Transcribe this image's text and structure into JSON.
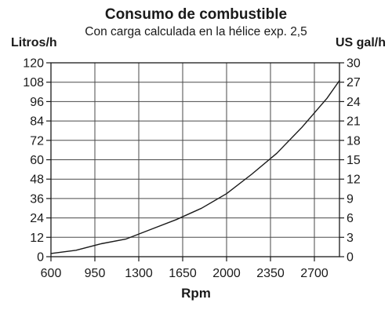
{
  "chart_data": {
    "type": "line",
    "title": "Consumo de combustible",
    "subtitle": "Con carga calculada en la hélice exp. 2,5",
    "xlabel": "Rpm",
    "ylabel_left": "Litros/h",
    "ylabel_right": "US gal/h",
    "xlim": [
      600,
      2900
    ],
    "ylim": [
      0,
      120
    ],
    "ylim_right": [
      0,
      30
    ],
    "x_ticks": [
      600,
      950,
      1300,
      1650,
      2000,
      2350,
      2700
    ],
    "y_ticks": [
      0,
      12,
      24,
      36,
      48,
      60,
      72,
      84,
      96,
      108,
      120
    ],
    "y_ticks_right": [
      0,
      3,
      6,
      9,
      12,
      15,
      18,
      21,
      24,
      27,
      30
    ],
    "grid": true,
    "series": [
      {
        "x": [
          600,
          800,
          1000,
          1200,
          1400,
          1600,
          1800,
          2000,
          2200,
          2400,
          2600,
          2800,
          2900
        ],
        "values": [
          2,
          4,
          8,
          11,
          17,
          23,
          30,
          39,
          51,
          64,
          80,
          98,
          109
        ],
        "color": "#1a1a1a"
      }
    ]
  }
}
